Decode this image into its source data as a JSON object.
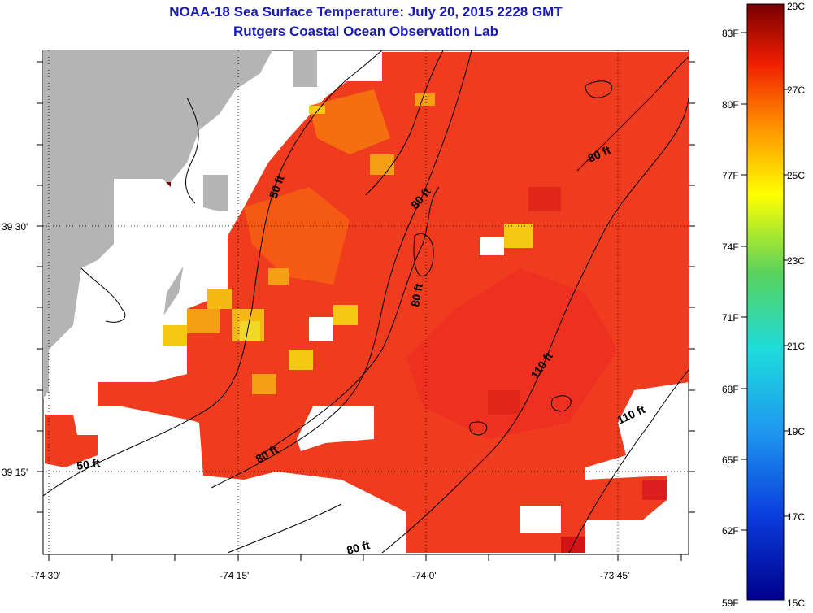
{
  "title": "NOAA-18 Sea Surface Temperature:  July 20, 2015 2228 GMT",
  "subtitle": "Rutgers Coastal Ocean Observation Lab",
  "axes": {
    "x_ticks": [
      "-74 30'",
      "-74 15'",
      "-74 0'",
      "-73 45'"
    ],
    "y_ticks": [
      "39 30'",
      "39 15'"
    ]
  },
  "colorbar": {
    "fahrenheit": [
      "83F",
      "80F",
      "77F",
      "74F",
      "71F",
      "68F",
      "65F",
      "62F",
      "59F"
    ],
    "celsius": [
      "29C",
      "27C",
      "25C",
      "23C",
      "21C",
      "19C",
      "17C",
      "15C"
    ],
    "range_c": [
      15,
      29
    ]
  },
  "contours": [
    "50 ft",
    "50 ft",
    "80 ft",
    "80 ft",
    "80 ft",
    "80 ft",
    "80 ft",
    "110 ft",
    "110 ft"
  ],
  "colors": {
    "land": "#b4b4b4",
    "warm": "#f03c1e",
    "title": "#1a1ab4"
  }
}
